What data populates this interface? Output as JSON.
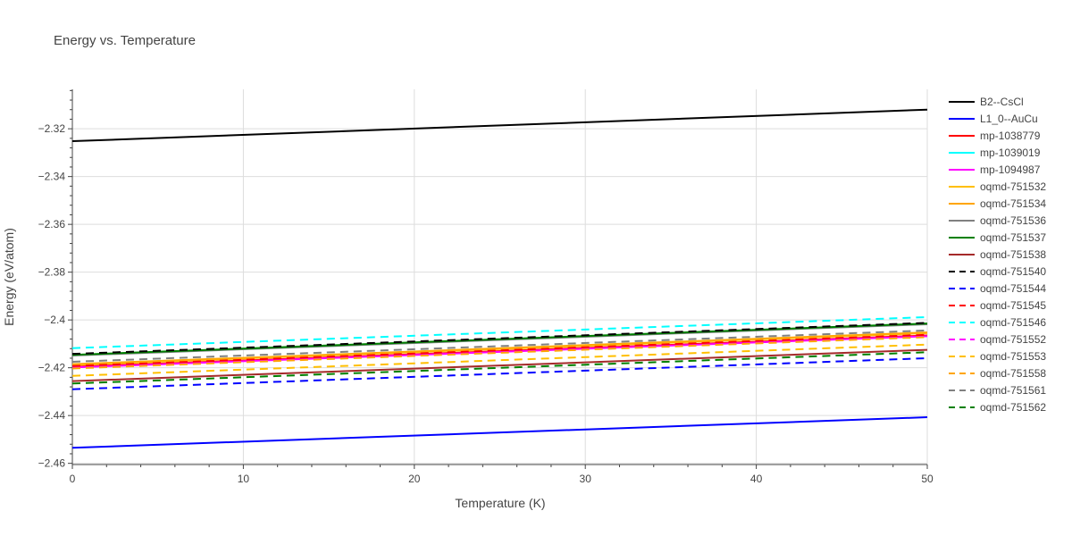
{
  "chart_data": {
    "type": "line",
    "title": "Energy vs. Temperature",
    "xlabel": "Temperature (K)",
    "ylabel": "Energy (eV/atom)",
    "xlim": [
      0,
      50
    ],
    "ylim": [
      -2.4605,
      -2.3035
    ],
    "x_ticks": [
      0,
      10,
      20,
      30,
      40,
      50
    ],
    "x_tick_labels": [
      "0",
      "10",
      "20",
      "30",
      "40",
      "50"
    ],
    "y_ticks": [
      -2.46,
      -2.44,
      -2.42,
      -2.4,
      -2.38,
      -2.36,
      -2.34,
      -2.32
    ],
    "y_tick_labels": [
      "−2.46",
      "−2.44",
      "−2.42",
      "−2.4",
      "−2.38",
      "−2.36",
      "−2.34",
      "−2.32"
    ],
    "grid": true,
    "legend_position": "right",
    "x": [
      0,
      50
    ],
    "series": [
      {
        "name": "B2--CsCl",
        "color": "#000000",
        "dash": "solid",
        "values": [
          -2.3252,
          -2.312
        ]
      },
      {
        "name": "L1_0--AuCu",
        "color": "#0000ff",
        "dash": "solid",
        "values": [
          -2.4535,
          -2.4407
        ]
      },
      {
        "name": "mp-1038779",
        "color": "#ff0000",
        "dash": "solid",
        "values": [
          -2.4196,
          -2.4065
        ]
      },
      {
        "name": "mp-1039019",
        "color": "#00ffff",
        "dash": "solid",
        "values": [
          -2.4148,
          -2.4017
        ]
      },
      {
        "name": "mp-1094987",
        "color": "#ff00ff",
        "dash": "solid",
        "values": [
          -2.4199,
          -2.4068
        ]
      },
      {
        "name": "oqmd-751532",
        "color": "#ffbf00",
        "dash": "solid",
        "values": [
          -2.4188,
          -2.4055
        ]
      },
      {
        "name": "oqmd-751534",
        "color": "#ffa500",
        "dash": "solid",
        "values": [
          -2.4185,
          -2.4052
        ]
      },
      {
        "name": "oqmd-751536",
        "color": "#808080",
        "dash": "solid",
        "values": [
          -2.4149,
          -2.4018
        ]
      },
      {
        "name": "oqmd-751537",
        "color": "#008000",
        "dash": "solid",
        "values": [
          -2.4146,
          -2.4015
        ]
      },
      {
        "name": "oqmd-751538",
        "color": "#a52a2a",
        "dash": "solid",
        "values": [
          -2.4256,
          -2.4125
        ]
      },
      {
        "name": "oqmd-751540",
        "color": "#000000",
        "dash": "dash",
        "values": [
          -2.4142,
          -2.4012
        ]
      },
      {
        "name": "oqmd-751544",
        "color": "#0000ff",
        "dash": "dash",
        "values": [
          -2.429,
          -2.416
        ]
      },
      {
        "name": "oqmd-751545",
        "color": "#ff0000",
        "dash": "dash",
        "values": [
          -2.4193,
          -2.4062
        ]
      },
      {
        "name": "oqmd-751546",
        "color": "#00ffff",
        "dash": "dash",
        "values": [
          -2.4118,
          -2.3988
        ]
      },
      {
        "name": "oqmd-751552",
        "color": "#ff00ff",
        "dash": "dash",
        "values": [
          -2.4201,
          -2.407
        ]
      },
      {
        "name": "oqmd-751553",
        "color": "#ffbf00",
        "dash": "dash",
        "values": [
          -2.4234,
          -2.4103
        ]
      },
      {
        "name": "oqmd-751558",
        "color": "#ffa500",
        "dash": "dash",
        "values": [
          -2.4203,
          -2.4072
        ]
      },
      {
        "name": "oqmd-751561",
        "color": "#808080",
        "dash": "dash",
        "values": [
          -2.4175,
          -2.4044
        ]
      },
      {
        "name": "oqmd-751562",
        "color": "#008000",
        "dash": "dash",
        "values": [
          -2.4266,
          -2.4135
        ]
      }
    ]
  }
}
